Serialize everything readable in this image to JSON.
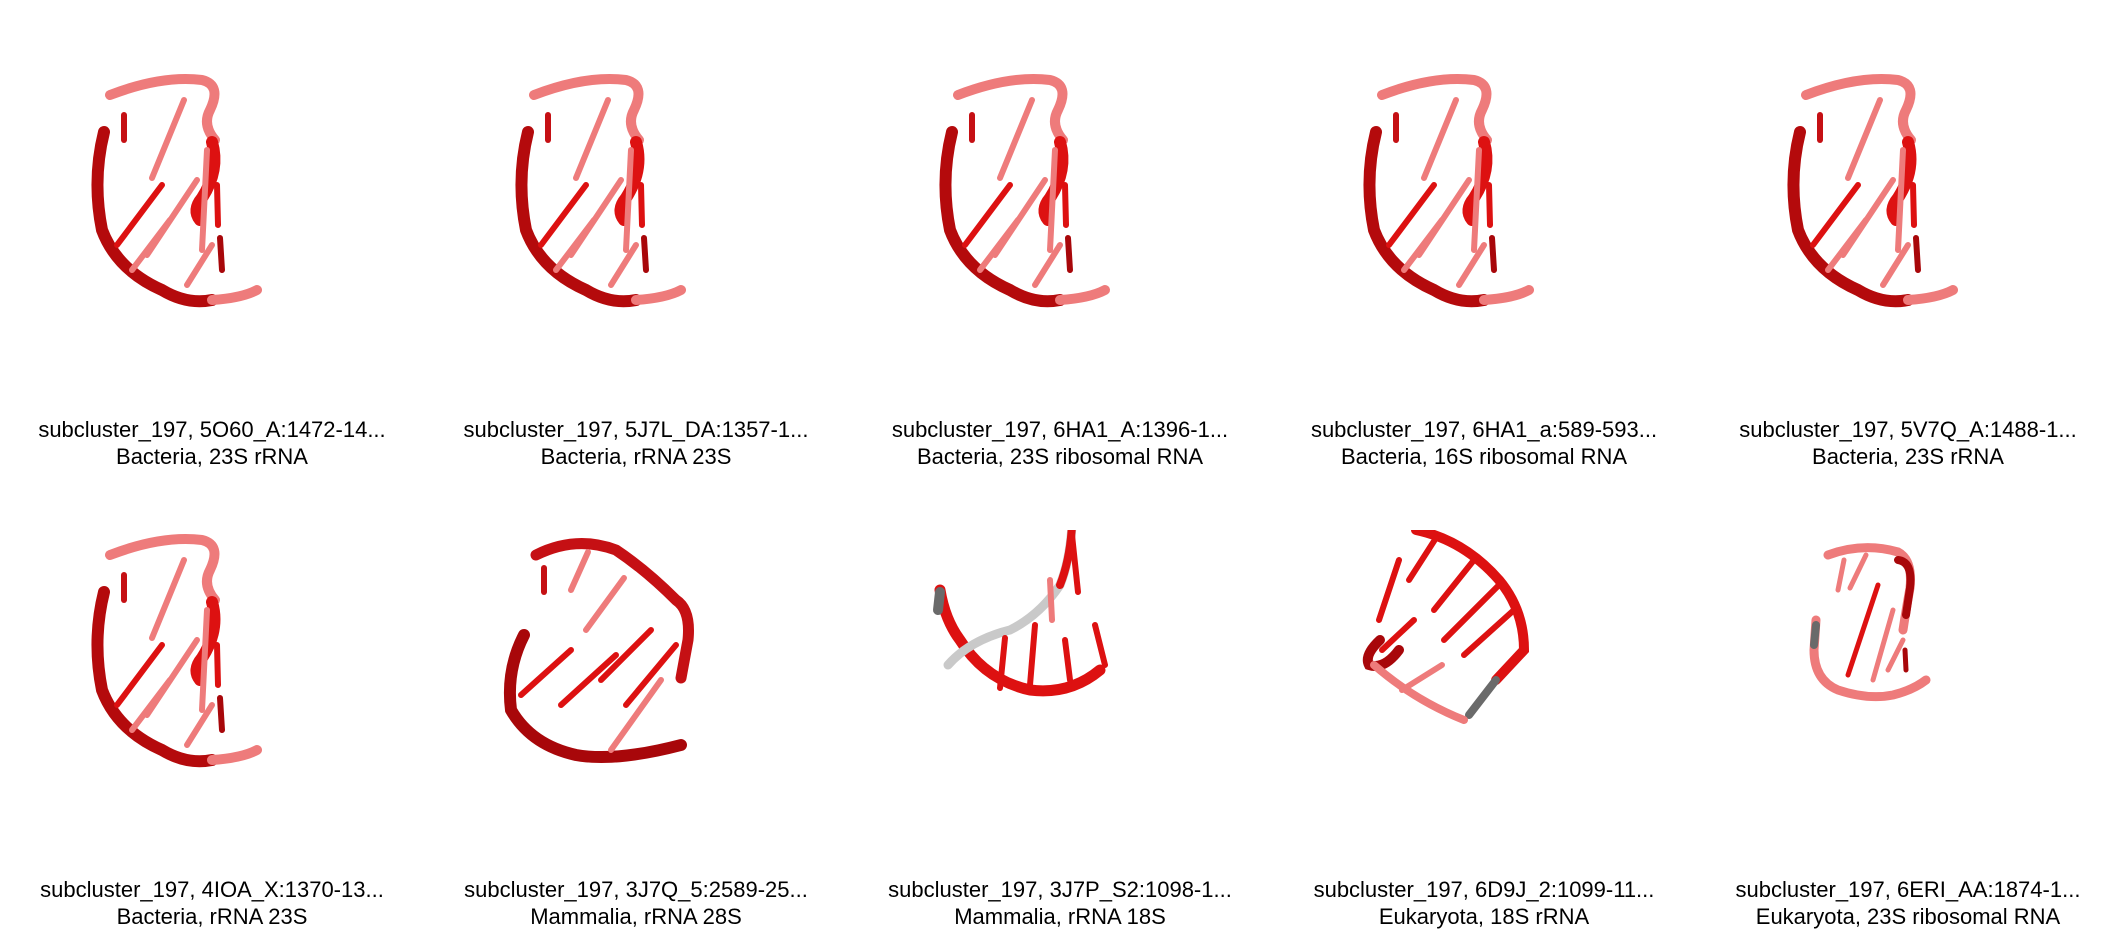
{
  "colors": {
    "strand_light": "#ee7b7b",
    "strand_mid": "#dd1111",
    "strand_dark": "#a8070a",
    "strand_gray": "#6a6a6a",
    "strand_lightgray": "#c9c9c9"
  },
  "panels": [
    {
      "title": "subcluster_197, 5O60_A:1472-14...",
      "subtitle": "Bacteria, 23S rRNA",
      "variant": "a"
    },
    {
      "title": "subcluster_197, 5J7L_DA:1357-1...",
      "subtitle": "Bacteria, rRNA 23S",
      "variant": "a"
    },
    {
      "title": "subcluster_197, 6HA1_A:1396-1...",
      "subtitle": "Bacteria, 23S ribosomal RNA",
      "variant": "a"
    },
    {
      "title": "subcluster_197, 6HA1_a:589-593...",
      "subtitle": "Bacteria, 16S ribosomal RNA",
      "variant": "a"
    },
    {
      "title": "subcluster_197, 5V7Q_A:1488-1...",
      "subtitle": "Bacteria, 23S rRNA",
      "variant": "a"
    },
    {
      "title": "subcluster_197, 4IOA_X:1370-13...",
      "subtitle": "Bacteria, rRNA 23S",
      "variant": "a"
    },
    {
      "title": "subcluster_197, 3J7Q_5:2589-25...",
      "subtitle": "Mammalia, rRNA 28S",
      "variant": "b"
    },
    {
      "title": "subcluster_197, 3J7P_S2:1098-1...",
      "subtitle": "Mammalia, rRNA 18S",
      "variant": "c"
    },
    {
      "title": "subcluster_197, 6D9J_2:1099-11...",
      "subtitle": "Eukaryota, 18S rRNA",
      "variant": "d"
    },
    {
      "title": "subcluster_197, 6ERI_AA:1874-1...",
      "subtitle": "Eukaryota, 23S ribosomal RNA",
      "variant": "e"
    }
  ]
}
